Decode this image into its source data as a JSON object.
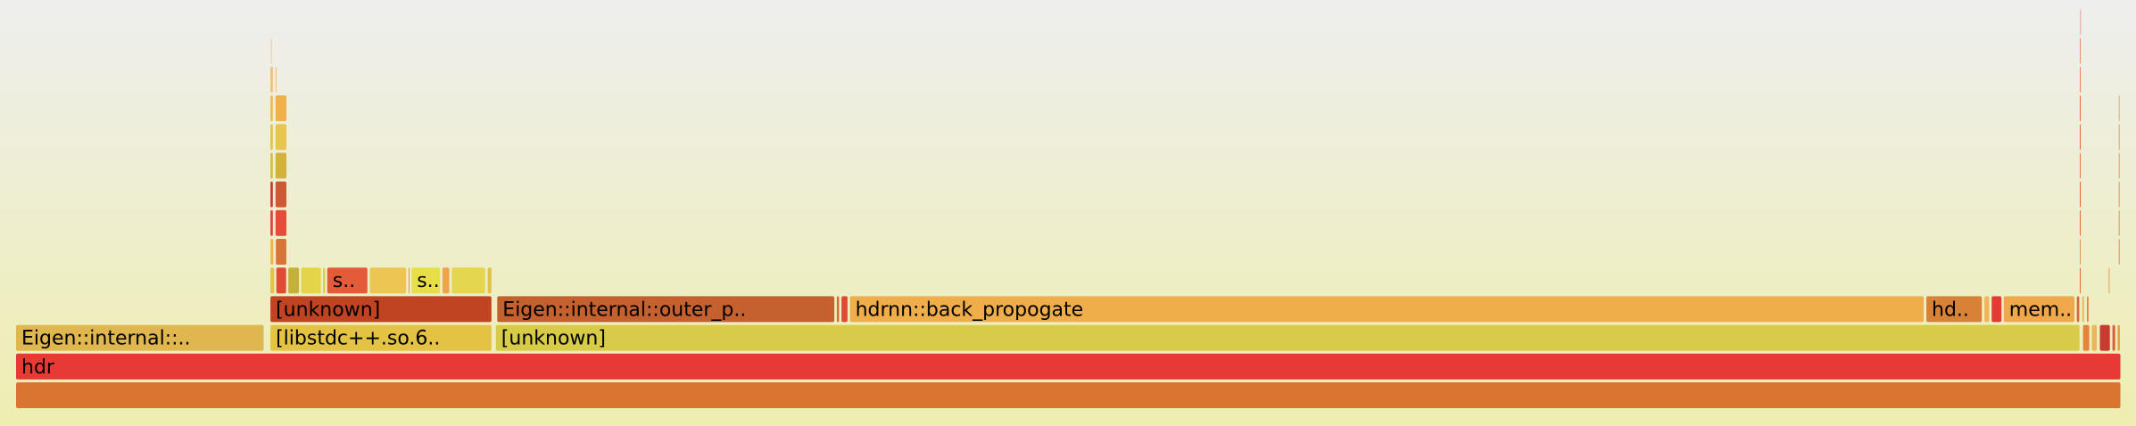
{
  "chart_data": {
    "type": "flamegraph",
    "frames": [
      {
        "label": "",
        "depth": 0,
        "start": 0.0,
        "end": 1.0,
        "color": "#d97530"
      },
      {
        "label": "hdr",
        "depth": 1,
        "start": 0.0,
        "end": 1.0,
        "color": "#e73a34"
      },
      {
        "label": "Eigen::internal::..",
        "depth": 2,
        "start": 0.0,
        "end": 0.1182,
        "color": "#e0b64e"
      },
      {
        "label": "[libstdc++.so.6..",
        "depth": 2,
        "start": 0.1208,
        "end": 0.2264,
        "color": "#e4c244"
      },
      {
        "label": "[unknown]",
        "depth": 2,
        "start": 0.2279,
        "end": 0.9806,
        "color": "#d8cb48"
      },
      {
        "label": "",
        "depth": 2,
        "start": 0.9816,
        "end": 0.9852,
        "color": "#e4833c"
      },
      {
        "label": "",
        "depth": 2,
        "start": 0.9858,
        "end": 0.9888,
        "color": "#e9b85a"
      },
      {
        "label": "",
        "depth": 2,
        "start": 0.9896,
        "end": 0.995,
        "color": "#c83b30"
      },
      {
        "label": "",
        "depth": 2,
        "start": 0.9956,
        "end": 0.9975,
        "color": "#e05b3a"
      },
      {
        "label": "",
        "depth": 2,
        "start": 0.998,
        "end": 0.9998,
        "color": "#e4a544"
      },
      {
        "label": "[unknown]",
        "depth": 3,
        "start": 0.1208,
        "end": 0.2264,
        "color": "#c04422"
      },
      {
        "label": "Eigen::internal::outer_p..",
        "depth": 3,
        "start": 0.2285,
        "end": 0.3892,
        "color": "#c4612f"
      },
      {
        "label": "",
        "depth": 3,
        "start": 0.3898,
        "end": 0.3915,
        "color": "#d86a3a"
      },
      {
        "label": "",
        "depth": 3,
        "start": 0.392,
        "end": 0.3955,
        "color": "#e04a34"
      },
      {
        "label": "hdrnn::back_propogate",
        "depth": 3,
        "start": 0.396,
        "end": 0.9066,
        "color": "#f0ae4a"
      },
      {
        "label": "hd..",
        "depth": 3,
        "start": 0.9072,
        "end": 0.9342,
        "color": "#d88238"
      },
      {
        "label": "",
        "depth": 3,
        "start": 0.9348,
        "end": 0.9377,
        "color": "#f0b45a"
      },
      {
        "label": "",
        "depth": 3,
        "start": 0.9382,
        "end": 0.9435,
        "color": "#e43c34"
      },
      {
        "label": "mem..",
        "depth": 3,
        "start": 0.944,
        "end": 0.9782,
        "color": "#f0a84a"
      },
      {
        "label": "",
        "depth": 3,
        "start": 0.9787,
        "end": 0.9805,
        "color": "#d9663a"
      },
      {
        "label": "",
        "depth": 3,
        "start": 0.9812,
        "end": 0.9828,
        "color": "#e8c060"
      },
      {
        "label": "",
        "depth": 3,
        "start": 0.9835,
        "end": 0.9848,
        "color": "#e0743e"
      },
      {
        "label": "",
        "depth": 4,
        "start": 0.1208,
        "end": 0.1232,
        "color": "#e6c04a"
      },
      {
        "label": "",
        "depth": 4,
        "start": 0.1236,
        "end": 0.1289,
        "color": "#e04b36"
      },
      {
        "label": "",
        "depth": 4,
        "start": 0.1293,
        "end": 0.135,
        "color": "#c7b03a"
      },
      {
        "label": "",
        "depth": 4,
        "start": 0.1354,
        "end": 0.1454,
        "color": "#e3d44a"
      },
      {
        "label": "",
        "depth": 4,
        "start": 0.1458,
        "end": 0.1474,
        "color": "#d8cd58"
      },
      {
        "label": "s..",
        "depth": 4,
        "start": 0.1478,
        "end": 0.1675,
        "color": "#e45b3a"
      },
      {
        "label": "",
        "depth": 4,
        "start": 0.168,
        "end": 0.1859,
        "color": "#ecc552"
      },
      {
        "label": "",
        "depth": 4,
        "start": 0.1864,
        "end": 0.1873,
        "color": "#e28840"
      },
      {
        "label": "s..",
        "depth": 4,
        "start": 0.1878,
        "end": 0.202,
        "color": "#e7de4a"
      },
      {
        "label": "",
        "depth": 4,
        "start": 0.2025,
        "end": 0.2064,
        "color": "#f0a44a"
      },
      {
        "label": "",
        "depth": 4,
        "start": 0.2069,
        "end": 0.2234,
        "color": "#e4d64e"
      },
      {
        "label": "",
        "depth": 4,
        "start": 0.224,
        "end": 0.2264,
        "color": "#e2c244"
      },
      {
        "label": "",
        "depth": 4,
        "start": 0.9801,
        "end": 0.981,
        "color": "#e06a3a"
      },
      {
        "label": "",
        "depth": 4,
        "start": 0.9938,
        "end": 0.9946,
        "color": "#e8a050"
      },
      {
        "label": "",
        "depth": 5,
        "start": 0.1208,
        "end": 0.1228,
        "color": "#ecb64a"
      },
      {
        "label": "",
        "depth": 5,
        "start": 0.1234,
        "end": 0.129,
        "color": "#d6743a"
      },
      {
        "label": "",
        "depth": 5,
        "start": 0.9801,
        "end": 0.9809,
        "color": "#e0904a"
      },
      {
        "label": "",
        "depth": 5,
        "start": 0.9986,
        "end": 0.9991,
        "color": "#e88a50"
      },
      {
        "label": "",
        "depth": 6,
        "start": 0.1208,
        "end": 0.1226,
        "color": "#e23e36"
      },
      {
        "label": "",
        "depth": 6,
        "start": 0.1232,
        "end": 0.129,
        "color": "#e64c38"
      },
      {
        "label": "",
        "depth": 6,
        "start": 0.9801,
        "end": 0.9809,
        "color": "#e06a3a"
      },
      {
        "label": "",
        "depth": 6,
        "start": 0.9986,
        "end": 0.9991,
        "color": "#e8905a"
      },
      {
        "label": "",
        "depth": 7,
        "start": 0.1208,
        "end": 0.1226,
        "color": "#c93a2e"
      },
      {
        "label": "",
        "depth": 7,
        "start": 0.1232,
        "end": 0.129,
        "color": "#cc5a34"
      },
      {
        "label": "",
        "depth": 7,
        "start": 0.9801,
        "end": 0.9809,
        "color": "#e46238"
      },
      {
        "label": "",
        "depth": 7,
        "start": 0.9986,
        "end": 0.9991,
        "color": "#e89060"
      },
      {
        "label": "",
        "depth": 8,
        "start": 0.1208,
        "end": 0.1226,
        "color": "#dcba44"
      },
      {
        "label": "",
        "depth": 8,
        "start": 0.1232,
        "end": 0.129,
        "color": "#d2b23a"
      },
      {
        "label": "",
        "depth": 8,
        "start": 0.9801,
        "end": 0.9809,
        "color": "#e27a44"
      },
      {
        "label": "",
        "depth": 8,
        "start": 0.9986,
        "end": 0.9991,
        "color": "#e89a5a"
      },
      {
        "label": "",
        "depth": 9,
        "start": 0.1208,
        "end": 0.1226,
        "color": "#e6c048"
      },
      {
        "label": "",
        "depth": 9,
        "start": 0.1232,
        "end": 0.129,
        "color": "#e8c54c"
      },
      {
        "label": "",
        "depth": 9,
        "start": 0.9801,
        "end": 0.9809,
        "color": "#e06a3a"
      },
      {
        "label": "",
        "depth": 9,
        "start": 0.9986,
        "end": 0.9991,
        "color": "#e8a060"
      },
      {
        "label": "",
        "depth": 10,
        "start": 0.1208,
        "end": 0.1226,
        "color": "#ecbb50"
      },
      {
        "label": "",
        "depth": 10,
        "start": 0.1232,
        "end": 0.129,
        "color": "#f0b04a"
      },
      {
        "label": "",
        "depth": 10,
        "start": 0.9801,
        "end": 0.9809,
        "color": "#e86a40"
      },
      {
        "label": "",
        "depth": 10,
        "start": 0.9986,
        "end": 0.9991,
        "color": "#e8a868"
      },
      {
        "label": "",
        "depth": 11,
        "start": 0.1208,
        "end": 0.1226,
        "color": "#f0c070"
      },
      {
        "label": "",
        "depth": 11,
        "start": 0.1232,
        "end": 0.1244,
        "color": "#f0c890"
      },
      {
        "label": "",
        "depth": 11,
        "start": 0.9801,
        "end": 0.9807,
        "color": "#e88060"
      },
      {
        "label": "",
        "depth": 12,
        "start": 0.121,
        "end": 0.1214,
        "color": "#f0c8a0"
      },
      {
        "label": "",
        "depth": 12,
        "start": 0.9801,
        "end": 0.9806,
        "color": "#e88a70"
      },
      {
        "label": "",
        "depth": 13,
        "start": 0.9802,
        "end": 0.9805,
        "color": "#f0a090"
      }
    ]
  }
}
